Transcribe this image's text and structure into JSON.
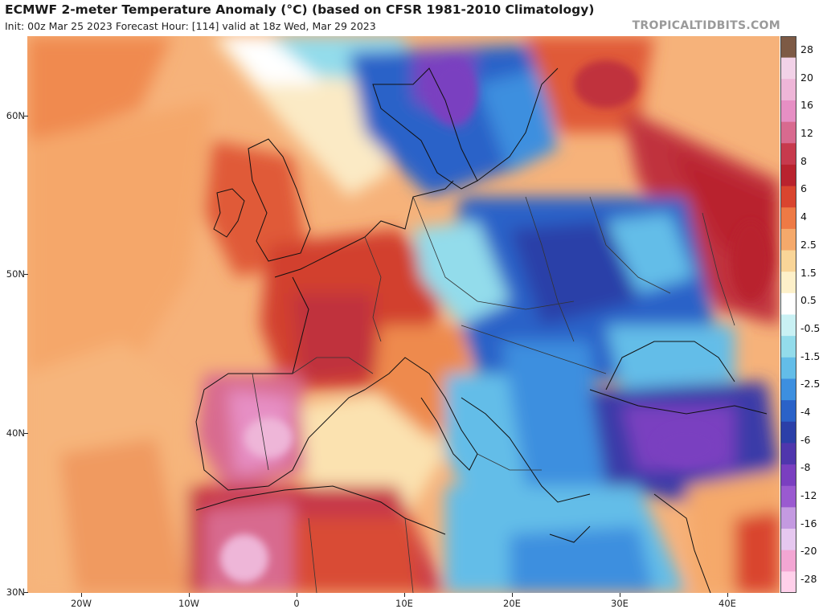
{
  "header": {
    "title": "ECMWF 2-meter Temperature Anomaly (°C) (based on CFSR 1981-2010 Climatology)",
    "subtitle": "Init: 00z Mar 25 2023   Forecast Hour: [114]   valid at 18z Wed, Mar 29 2023",
    "brand": "TROPICALTIDBITS.COM"
  },
  "map": {
    "lat_labels": [
      "60N",
      "50N",
      "40N",
      "30N"
    ],
    "lon_labels": [
      "20W",
      "10W",
      "0",
      "10E",
      "20E",
      "30E",
      "40E"
    ]
  },
  "colorbar": {
    "labels": [
      "28",
      "20",
      "16",
      "12",
      "8",
      "6",
      "4",
      "2.5",
      "1.5",
      "0.5",
      "-0.5",
      "-1.5",
      "-2.5",
      "-4",
      "-6",
      "-8",
      "-12",
      "-16",
      "-20",
      "-28"
    ],
    "colors": [
      "#7d5a45",
      "#f2d2e8",
      "#eeb6d8",
      "#e68fc4",
      "#d86a8f",
      "#c73a4d",
      "#b9232e",
      "#d9452f",
      "#ee7a45",
      "#f5a96b",
      "#f9d598",
      "#fdf0c9",
      "#ffffff",
      "#c9f1f4",
      "#93dceb",
      "#63bde8",
      "#3d8fdf",
      "#2a62c8",
      "#2b3fa8",
      "#4f36ad",
      "#7a3fc0",
      "#9a5ad0",
      "#c49ae1",
      "#e6c8f0",
      "#f3a6d3",
      "#ffd0ea"
    ]
  }
}
